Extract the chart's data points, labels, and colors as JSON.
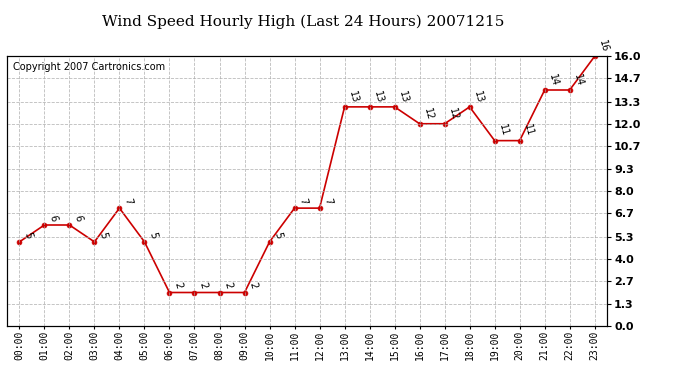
{
  "title": "Wind Speed Hourly High (Last 24 Hours) 20071215",
  "copyright": "Copyright 2007 Cartronics.com",
  "hours": [
    "00:00",
    "01:00",
    "02:00",
    "03:00",
    "04:00",
    "05:00",
    "06:00",
    "07:00",
    "08:00",
    "09:00",
    "10:00",
    "11:00",
    "12:00",
    "13:00",
    "14:00",
    "15:00",
    "16:00",
    "17:00",
    "18:00",
    "19:00",
    "20:00",
    "21:00",
    "22:00",
    "23:00"
  ],
  "values": [
    5,
    6,
    6,
    5,
    7,
    5,
    2,
    2,
    2,
    2,
    5,
    7,
    7,
    13,
    13,
    13,
    12,
    12,
    13,
    11,
    11,
    14,
    14,
    16
  ],
  "yticks": [
    0.0,
    1.3,
    2.7,
    4.0,
    5.3,
    6.7,
    8.0,
    9.3,
    10.7,
    12.0,
    13.3,
    14.7,
    16.0
  ],
  "ytick_labels": [
    "0.0",
    "1.3",
    "2.7",
    "4.0",
    "5.3",
    "6.7",
    "8.0",
    "9.3",
    "10.7",
    "12.0",
    "13.3",
    "14.7",
    "16.0"
  ],
  "line_color": "#cc0000",
  "marker_color": "#cc0000",
  "bg_color": "#ffffff",
  "grid_color": "#aaaaaa",
  "title_fontsize": 11,
  "label_fontsize": 7,
  "copyright_fontsize": 7,
  "annotation_fontsize": 7,
  "annotation_rotation": -75
}
